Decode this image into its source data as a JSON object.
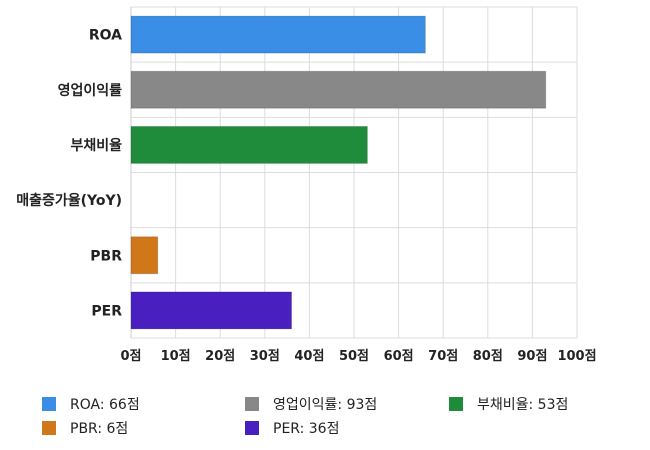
{
  "chart_data": {
    "type": "bar",
    "orientation": "horizontal",
    "categories": [
      "ROA",
      "영업이익률",
      "부채비율",
      "매출증가율(YoY)",
      "PBR",
      "PER"
    ],
    "values": [
      66,
      93,
      53,
      0,
      6,
      36
    ],
    "colors": [
      "#3a8ee6",
      "#888888",
      "#1e8c3a",
      "#e8a020",
      "#d0771a",
      "#4a1fbf"
    ],
    "xlim": [
      0,
      100
    ],
    "xticks": [
      "0점",
      "10점",
      "20점",
      "30점",
      "40점",
      "50점",
      "60점",
      "70점",
      "80점",
      "90점",
      "100점"
    ],
    "grid": true,
    "legend_position": "bottom",
    "legend": [
      {
        "label": "ROA: 66점",
        "color": "#3a8ee6"
      },
      {
        "label": "영업이익률: 93점",
        "color": "#888888"
      },
      {
        "label": "부채비율: 53점",
        "color": "#1e8c3a"
      },
      {
        "label": "PBR: 6점",
        "color": "#d0771a"
      },
      {
        "label": "PER: 36점",
        "color": "#4a1fbf"
      }
    ]
  }
}
